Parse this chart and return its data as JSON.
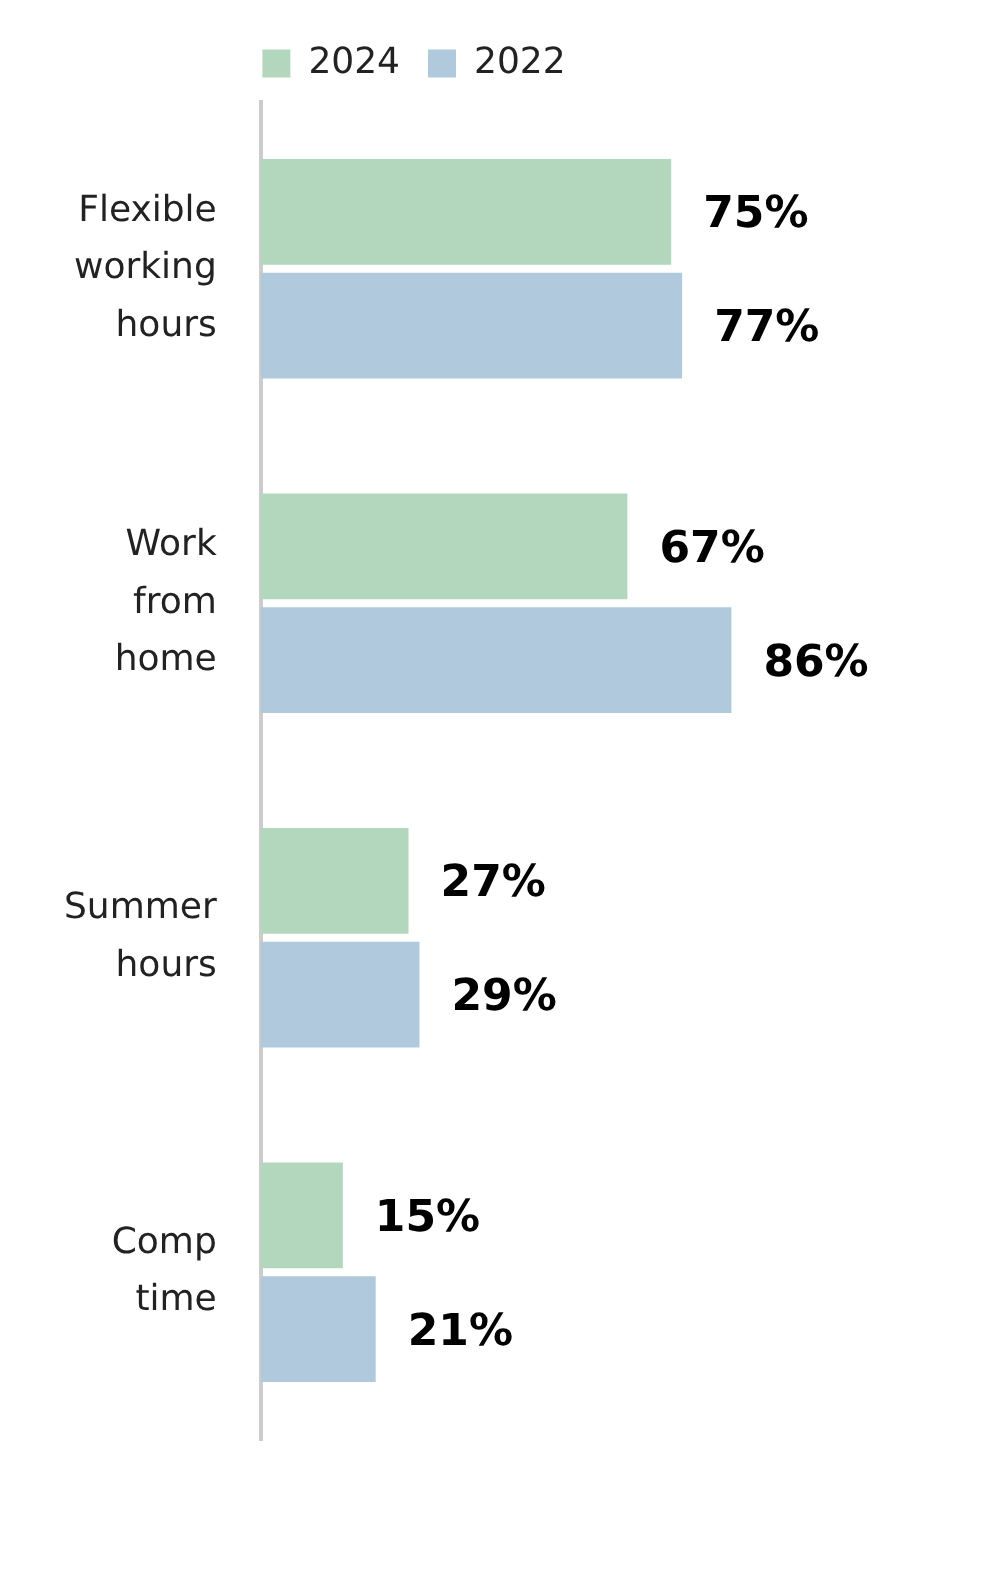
{
  "chart_data": {
    "type": "bar",
    "orientation": "horizontal",
    "categories": [
      "Flexible working hours",
      "Work from home",
      "Summer hours",
      "Comp time"
    ],
    "series": [
      {
        "name": "2024",
        "color": "#b3d7bc",
        "values": [
          75,
          67,
          27,
          15
        ],
        "value_labels": [
          "75%",
          "67%",
          "27%",
          "15%"
        ]
      },
      {
        "name": "2022",
        "color": "#b0c9dc",
        "values": [
          77,
          86,
          29,
          21
        ],
        "value_labels": [
          "77%",
          "86%",
          "29%",
          "21%"
        ]
      }
    ],
    "legend": "top",
    "tick_labels": "y"
  }
}
